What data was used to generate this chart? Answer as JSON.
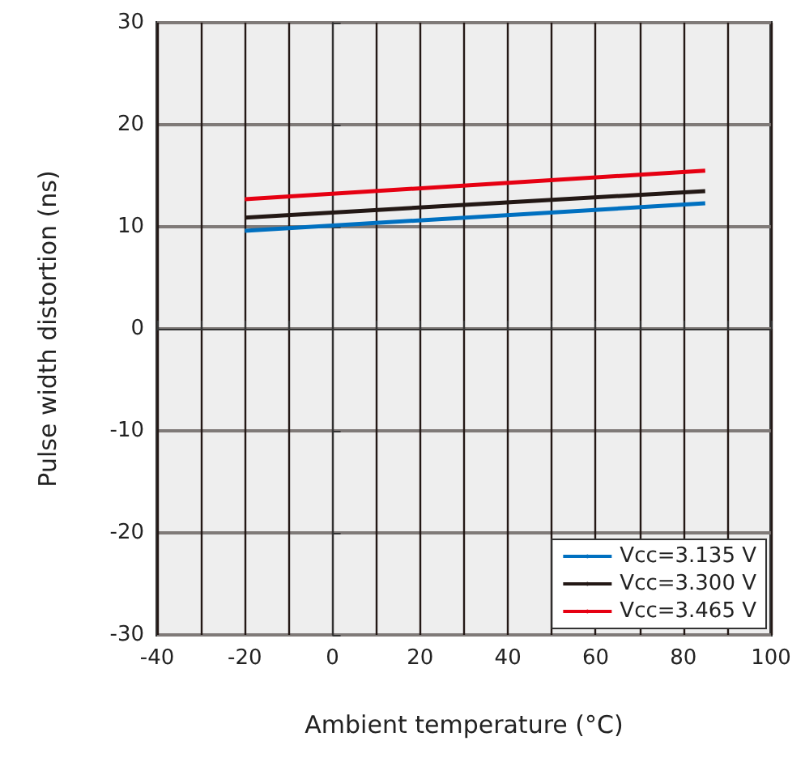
{
  "chart_data": {
    "type": "line",
    "xlabel": "Ambient temperature (°C)",
    "ylabel": "Pulse width distortion (ns)",
    "x": [
      -20,
      85
    ],
    "series": [
      {
        "name": "Vcc=3.135 V",
        "color": "#0070c0",
        "values": [
          9.6,
          12.3
        ]
      },
      {
        "name": "Vcc=3.300 V",
        "color": "#231815",
        "values": [
          10.9,
          13.5
        ]
      },
      {
        "name": "Vcc=3.465 V",
        "color": "#e60012",
        "values": [
          12.7,
          15.5
        ]
      }
    ],
    "xlim": [
      -40,
      100
    ],
    "xticks": [
      -40,
      {
        "value": -30,
        "label": null
      },
      -20,
      {
        "value": -10,
        "label": null
      },
      0,
      {
        "value": 10,
        "label": null
      },
      20,
      {
        "value": 30,
        "label": null
      },
      40,
      {
        "value": 50,
        "label": null
      },
      60,
      {
        "value": 70,
        "label": null
      },
      80,
      {
        "value": 90,
        "label": null
      },
      100
    ],
    "ylim": [
      -30,
      30
    ],
    "yticks": [
      -30,
      -20,
      -10,
      0,
      10,
      20,
      30
    ],
    "grid": true,
    "legend": "bottom right",
    "marker": "none",
    "line_style": "solid"
  }
}
